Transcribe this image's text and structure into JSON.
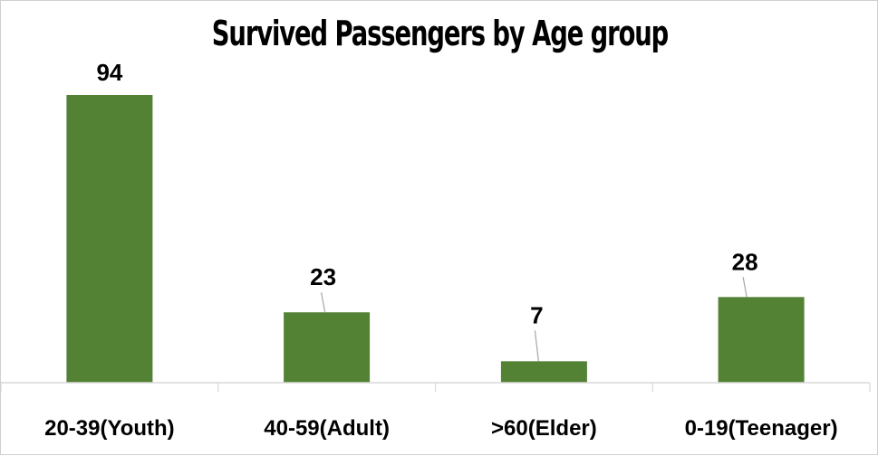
{
  "chart_data": {
    "type": "bar",
    "title": "Survived Passengers by Age group",
    "categories": [
      "20-39(Youth)",
      "40-59(Adult)",
      ">60(Elder)",
      "0-19(Teenager)"
    ],
    "values": [
      94,
      23,
      7,
      28
    ],
    "data_labels": [
      "94",
      "23",
      "7",
      "28"
    ],
    "xlabel": "",
    "ylabel": "",
    "ylim": [
      0,
      94
    ],
    "grid": false,
    "legend": "none",
    "bar_color": "#548235"
  }
}
